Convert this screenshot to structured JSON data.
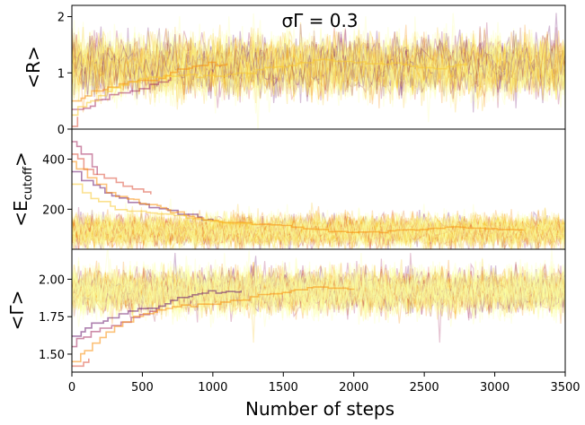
{
  "chart_data": {
    "type": "line",
    "xlabel": "Number of steps",
    "x_range": [
      0,
      3500
    ],
    "x_ticks": [
      "0",
      "500",
      "1000",
      "1500",
      "2000",
      "2500",
      "3000",
      "3500"
    ],
    "x_tick_values": [
      0,
      500,
      1000,
      1500,
      2000,
      2500,
      3000,
      3500
    ],
    "colormap": [
      "#fcffa4",
      "#f8c932",
      "#f98e09",
      "#dd513a",
      "#a52c60",
      "#6a176e",
      "#2d0b59",
      "#000004"
    ],
    "panels": [
      {
        "annotation": "σΓ = 0.3",
        "ylabel": "<R>",
        "ylim": [
          0,
          2.2
        ],
        "y_ticks": [
          "0",
          "1",
          "2"
        ],
        "y_tick_values": [
          0,
          1,
          2
        ],
        "band": {
          "center": 1.12,
          "half_width": 0.45
        },
        "outliers": [
          {
            "start": 0.05,
            "settle_step": 40,
            "start_color": "#dd513a"
          },
          {
            "start": 0.35,
            "settle_step": 700,
            "start_color": "#a52c60"
          },
          {
            "start": 0.5,
            "settle_step": 1100,
            "start_color": "#f98e09"
          },
          {
            "start": 0.25,
            "settle_step": 2800,
            "start_color": "#f8c932"
          }
        ]
      },
      {
        "ylabel": "<E_cutoff>",
        "ylabel_main": "<E",
        "ylabel_sub": "cutoff",
        "ylabel_close": ">",
        "ylim": [
          40,
          520
        ],
        "y_ticks": [
          "200",
          "400"
        ],
        "y_tick_values": [
          200,
          400
        ],
        "band": {
          "center": 112,
          "half_width": 55
        },
        "outliers": [
          {
            "start": 470,
            "settle_step": 180,
            "start_color": "#a52c60"
          },
          {
            "start": 420,
            "settle_step": 560,
            "start_color": "#dd513a"
          },
          {
            "start": 350,
            "settle_step": 1000,
            "start_color": "#6a176e"
          },
          {
            "start": 390,
            "settle_step": 3200,
            "start_color": "#f98e09"
          },
          {
            "start": 300,
            "settle_step": 1300,
            "start_color": "#f8c932"
          }
        ]
      },
      {
        "ylabel": "<Γ>",
        "ylim": [
          1.38,
          2.2
        ],
        "y_ticks": [
          "1.50",
          "1.75",
          "2.00"
        ],
        "y_tick_values": [
          1.5,
          1.75,
          2.0
        ],
        "band": {
          "center": 1.92,
          "half_width": 0.13
        },
        "outliers": [
          {
            "start": 1.42,
            "settle_step": 120,
            "start_color": "#dd513a"
          },
          {
            "start": 1.55,
            "settle_step": 600,
            "start_color": "#a52c60"
          },
          {
            "start": 1.62,
            "settle_step": 1200,
            "start_color": "#6a176e"
          },
          {
            "start": 1.45,
            "settle_step": 2000,
            "start_color": "#f98e09"
          }
        ]
      }
    ]
  }
}
